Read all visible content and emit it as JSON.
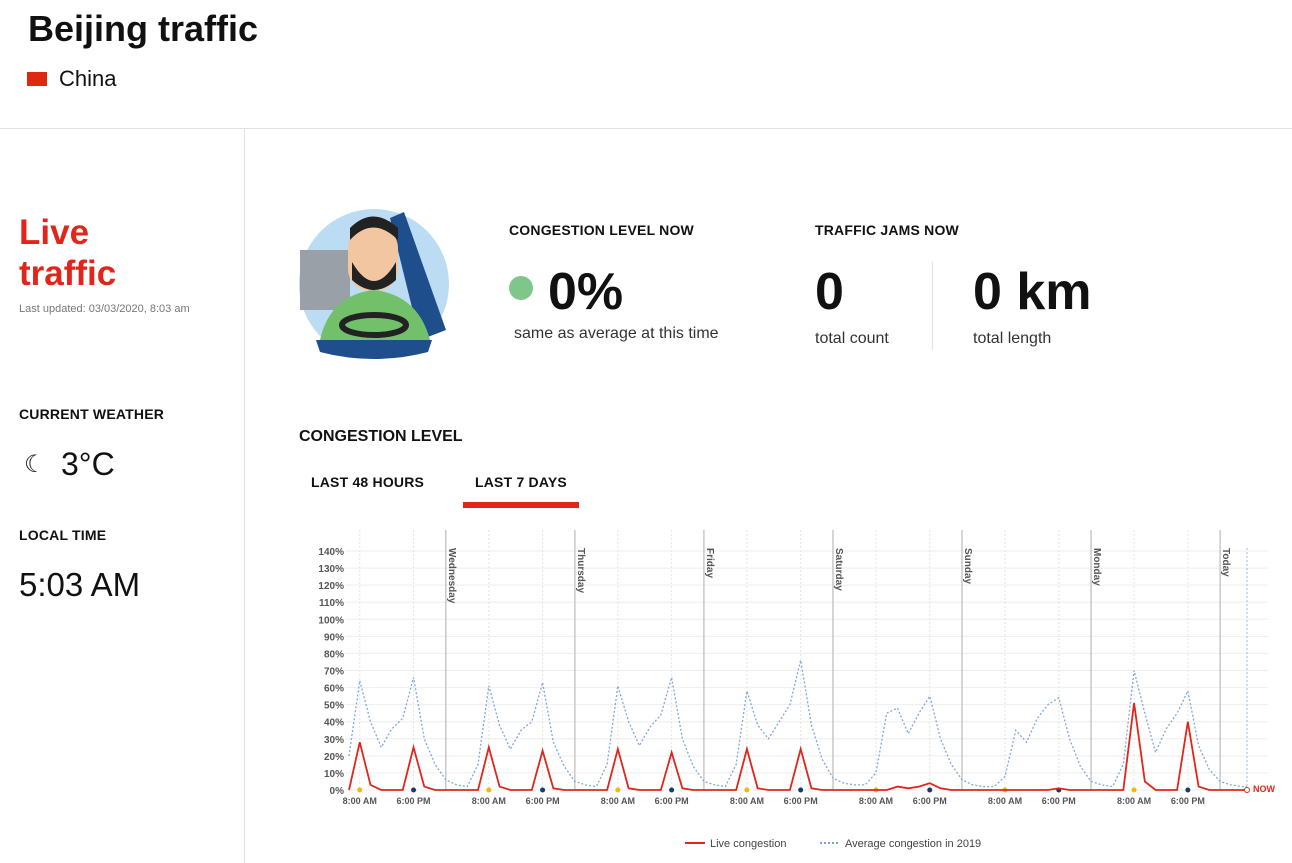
{
  "header": {
    "title": "Beijing traffic",
    "country": "China"
  },
  "sidebar": {
    "heading": "Live traffic",
    "updated": "Last updated: 03/03/2020, 8:03 am",
    "weather_label": "CURRENT WEATHER",
    "weather_temp": "3°C",
    "time_label": "LOCAL TIME",
    "time_value": "5:03 AM"
  },
  "stats": {
    "congestion_label": "CONGESTION LEVEL NOW",
    "congestion_value": "0%",
    "congestion_note": "same as average at this time",
    "jams_label": "TRAFFIC JAMS NOW",
    "jams_count": "0",
    "jams_count_label": "total count",
    "jams_length": "0 km",
    "jams_length_label": "total length"
  },
  "tabs": [
    "LAST 48 HOURS",
    "LAST 7 DAYS"
  ],
  "chart_data": {
    "type": "line",
    "title": "CONGESTION LEVEL",
    "xlim": [
      0,
      167
    ],
    "ylim": [
      0,
      140
    ],
    "yticks": [
      {
        "value": 0,
        "label": "0%"
      },
      {
        "value": 10,
        "label": "10%"
      },
      {
        "value": 20,
        "label": "20%"
      },
      {
        "value": 30,
        "label": "30%"
      },
      {
        "value": 40,
        "label": "40%"
      },
      {
        "value": 50,
        "label": "50%"
      },
      {
        "value": 60,
        "label": "60%"
      },
      {
        "value": 70,
        "label": "70%"
      },
      {
        "value": 80,
        "label": "80%"
      },
      {
        "value": 90,
        "label": "90%"
      },
      {
        "value": 100,
        "label": "100%"
      },
      {
        "value": 110,
        "label": "110%"
      },
      {
        "value": 120,
        "label": "120%"
      },
      {
        "value": 130,
        "label": "130%"
      },
      {
        "value": 140,
        "label": "140%"
      }
    ],
    "xticks": [
      {
        "value": 2,
        "label": "8:00 AM"
      },
      {
        "value": 12,
        "label": "6:00 PM"
      },
      {
        "value": 26,
        "label": "8:00 AM"
      },
      {
        "value": 36,
        "label": "6:00 PM"
      },
      {
        "value": 50,
        "label": "8:00 AM"
      },
      {
        "value": 60,
        "label": "6:00 PM"
      },
      {
        "value": 74,
        "label": "8:00 AM"
      },
      {
        "value": 84,
        "label": "6:00 PM"
      },
      {
        "value": 98,
        "label": "8:00 AM"
      },
      {
        "value": 108,
        "label": "6:00 PM"
      },
      {
        "value": 122,
        "label": "8:00 AM"
      },
      {
        "value": 132,
        "label": "6:00 PM"
      },
      {
        "value": 146,
        "label": "8:00 AM"
      },
      {
        "value": 156,
        "label": "6:00 PM"
      }
    ],
    "day_markers": [
      {
        "value": 18,
        "label": "Wednesday"
      },
      {
        "value": 42,
        "label": "Thursday"
      },
      {
        "value": 66,
        "label": "Friday"
      },
      {
        "value": 90,
        "label": "Saturday"
      },
      {
        "value": 114,
        "label": "Sunday"
      },
      {
        "value": 138,
        "label": "Monday"
      },
      {
        "value": 162,
        "label": "Today"
      }
    ],
    "now_label": "NOW",
    "grid": true,
    "x": [
      0,
      2,
      4,
      6,
      8,
      10,
      12,
      14,
      16,
      18,
      20,
      22,
      24,
      26,
      28,
      30,
      32,
      34,
      36,
      38,
      40,
      42,
      44,
      46,
      48,
      50,
      52,
      54,
      56,
      58,
      60,
      62,
      64,
      66,
      68,
      70,
      72,
      74,
      76,
      78,
      80,
      82,
      84,
      86,
      88,
      90,
      92,
      94,
      96,
      98,
      100,
      102,
      104,
      106,
      108,
      110,
      112,
      114,
      116,
      118,
      120,
      122,
      124,
      126,
      128,
      130,
      132,
      134,
      136,
      138,
      140,
      142,
      144,
      146,
      148,
      150,
      152,
      154,
      156,
      158,
      160,
      162,
      164,
      166,
      167
    ],
    "series": [
      {
        "name": "Live congestion",
        "color": "#e0261b",
        "dash": false,
        "values": [
          0,
          28,
          3,
          0,
          0,
          0,
          25,
          2,
          0,
          0,
          0,
          0,
          0,
          25,
          2,
          0,
          0,
          0,
          23,
          1,
          0,
          0,
          0,
          0,
          0,
          24,
          1,
          0,
          0,
          0,
          22,
          1,
          0,
          0,
          0,
          0,
          0,
          24,
          1,
          0,
          0,
          0,
          24,
          1,
          0,
          0,
          0,
          0,
          0,
          0,
          0,
          2,
          1,
          2,
          4,
          1,
          0,
          0,
          0,
          0,
          0,
          0,
          0,
          0,
          0,
          0,
          1,
          0,
          0,
          0,
          0,
          0,
          0,
          51,
          5,
          0,
          0,
          0,
          40,
          2,
          0,
          0,
          0,
          0,
          0
        ]
      },
      {
        "name": "Average congestion in 2019",
        "color": "#7ea8d8",
        "dash": true,
        "values": [
          20,
          64,
          40,
          25,
          36,
          42,
          66,
          30,
          15,
          6,
          3,
          2,
          15,
          61,
          38,
          24,
          35,
          40,
          63,
          28,
          14,
          5,
          3,
          2,
          15,
          61,
          40,
          26,
          37,
          44,
          66,
          30,
          14,
          5,
          3,
          2,
          15,
          58,
          38,
          30,
          40,
          50,
          76,
          38,
          18,
          7,
          4,
          3,
          3,
          10,
          45,
          48,
          33,
          45,
          55,
          30,
          15,
          6,
          3,
          2,
          2,
          8,
          35,
          28,
          42,
          50,
          54,
          30,
          14,
          5,
          3,
          2,
          15,
          70,
          45,
          22,
          36,
          45,
          58,
          26,
          12,
          5,
          3,
          2,
          2
        ]
      }
    ]
  }
}
